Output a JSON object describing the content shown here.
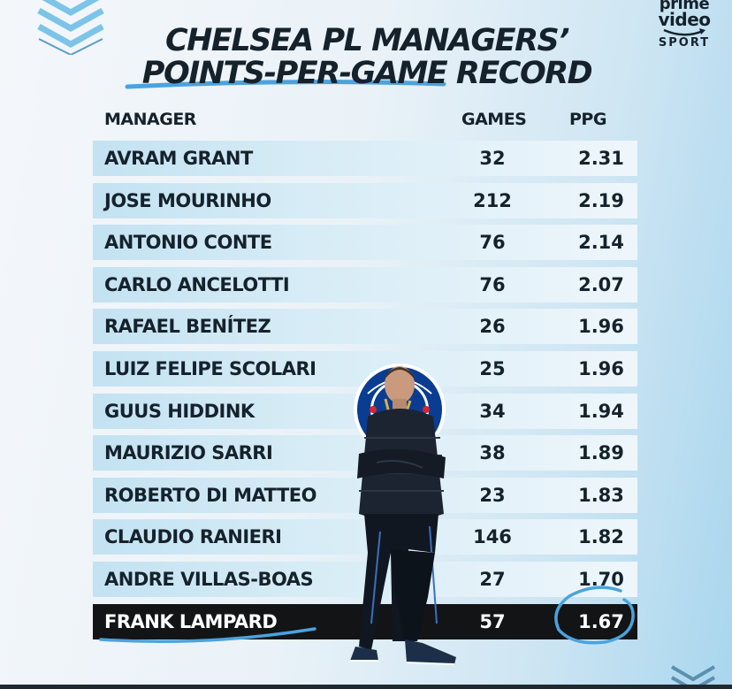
{
  "brand": {
    "line1": "prime",
    "line2": "video",
    "line3": "SPORT",
    "logo_icon": "prime-video-smile-icon"
  },
  "title": {
    "line1": "CHELSEA PL MANAGERS’",
    "line2": "POINTS-PER-GAME RECORD"
  },
  "table": {
    "header_manager": "MANAGER",
    "header_games": "GAMES",
    "header_ppg": "PPG",
    "rows": [
      {
        "name": "AVRAM GRANT",
        "games": "32",
        "ppg": "2.31"
      },
      {
        "name": "JOSE MOURINHO",
        "games": "212",
        "ppg": "2.19"
      },
      {
        "name": "ANTONIO CONTE",
        "games": "76",
        "ppg": "2.14"
      },
      {
        "name": "CARLO ANCELOTTI",
        "games": "76",
        "ppg": "2.07"
      },
      {
        "name": "RAFAEL BENÍTEZ",
        "games": "26",
        "ppg": "1.96"
      },
      {
        "name": "LUIZ FELIPE SCOLARI",
        "games": "25",
        "ppg": "1.96"
      },
      {
        "name": "GUUS HIDDINK",
        "games": "34",
        "ppg": "1.94"
      },
      {
        "name": "MAURIZIO SARRI",
        "games": "38",
        "ppg": "1.89"
      },
      {
        "name": "ROBERTO DI MATTEO",
        "games": "23",
        "ppg": "1.83"
      },
      {
        "name": "CLAUDIO RANIERI",
        "games": "146",
        "ppg": "1.82"
      },
      {
        "name": "ANDRE VILLAS-BOAS",
        "games": "27",
        "ppg": "1.70"
      },
      {
        "name": "FRANK LAMPARD",
        "games": "57",
        "ppg": "1.67",
        "highlight": true
      }
    ]
  },
  "chart_data": {
    "type": "table",
    "title": "CHELSEA PL MANAGERS’ POINTS-PER-GAME RECORD",
    "columns": [
      "MANAGER",
      "GAMES",
      "PPG"
    ],
    "rows": [
      [
        "AVRAM GRANT",
        32,
        2.31
      ],
      [
        "JOSE MOURINHO",
        212,
        2.19
      ],
      [
        "ANTONIO CONTE",
        76,
        2.14
      ],
      [
        "CARLO ANCELOTTI",
        76,
        2.07
      ],
      [
        "RAFAEL BENÍTEZ",
        26,
        1.96
      ],
      [
        "LUIZ FELIPE SCOLARI",
        25,
        1.96
      ],
      [
        "GUUS HIDDINK",
        34,
        1.94
      ],
      [
        "MAURIZIO SARRI",
        38,
        1.89
      ],
      [
        "ROBERTO DI MATTEO",
        23,
        1.83
      ],
      [
        "CLAUDIO RANIERI",
        146,
        1.82
      ],
      [
        "ANDRE VILLAS-BOAS",
        27,
        1.7
      ],
      [
        "FRANK LAMPARD",
        57,
        1.67
      ]
    ],
    "highlighted_row": "FRANK LAMPARD"
  },
  "colors": {
    "ink": "#15222c",
    "accent_blue": "#4aa3dc",
    "highlight_row": "#121416",
    "row_blue": "#c3e2f2"
  },
  "decor": {
    "corner_mark": "chevron-stripes-icon",
    "crest": "chelsea-crest-icon",
    "player": "manager-figure-icon"
  }
}
